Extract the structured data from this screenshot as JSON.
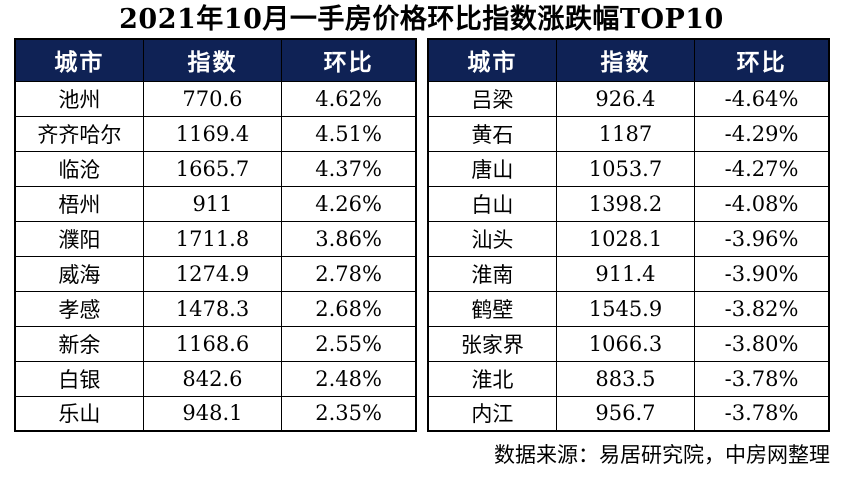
{
  "title": "2021年10月一手房价格环比指数涨跌幅TOP10",
  "footer": {
    "source_label": "数据来源：易居研究院，中房网整理"
  },
  "colors": {
    "header_bg": "#0f2255",
    "header_text": "#ffffff",
    "border": "#000000",
    "page_bg": "#ffffff"
  },
  "chart_data": [
    {
      "id": "gainers",
      "type": "table",
      "title": "2021年10月一手房价格环比指数涨跌幅TOP10",
      "columns": [
        "城市",
        "指数",
        "环比"
      ],
      "rows": [
        [
          "池州",
          "770.6",
          "4.62%"
        ],
        [
          "齐齐哈尔",
          "1169.4",
          "4.51%"
        ],
        [
          "临沧",
          "1665.7",
          "4.37%"
        ],
        [
          "梧州",
          "911",
          "4.26%"
        ],
        [
          "濮阳",
          "1711.8",
          "3.86%"
        ],
        [
          "威海",
          "1274.9",
          "2.78%"
        ],
        [
          "孝感",
          "1478.3",
          "2.68%"
        ],
        [
          "新余",
          "1168.6",
          "2.55%"
        ],
        [
          "白银",
          "842.6",
          "2.48%"
        ],
        [
          "乐山",
          "948.1",
          "2.35%"
        ]
      ]
    },
    {
      "id": "decliners",
      "type": "table",
      "columns": [
        "城市",
        "指数",
        "环比"
      ],
      "rows": [
        [
          "吕梁",
          "926.4",
          "-4.64%"
        ],
        [
          "黄石",
          "1187",
          "-4.29%"
        ],
        [
          "唐山",
          "1053.7",
          "-4.27%"
        ],
        [
          "白山",
          "1398.2",
          "-4.08%"
        ],
        [
          "汕头",
          "1028.1",
          "-3.96%"
        ],
        [
          "淮南",
          "911.4",
          "-3.90%"
        ],
        [
          "鹤壁",
          "1545.9",
          "-3.82%"
        ],
        [
          "张家界",
          "1066.3",
          "-3.80%"
        ],
        [
          "淮北",
          "883.5",
          "-3.78%"
        ],
        [
          "内江",
          "956.7",
          "-3.78%"
        ]
      ]
    }
  ]
}
